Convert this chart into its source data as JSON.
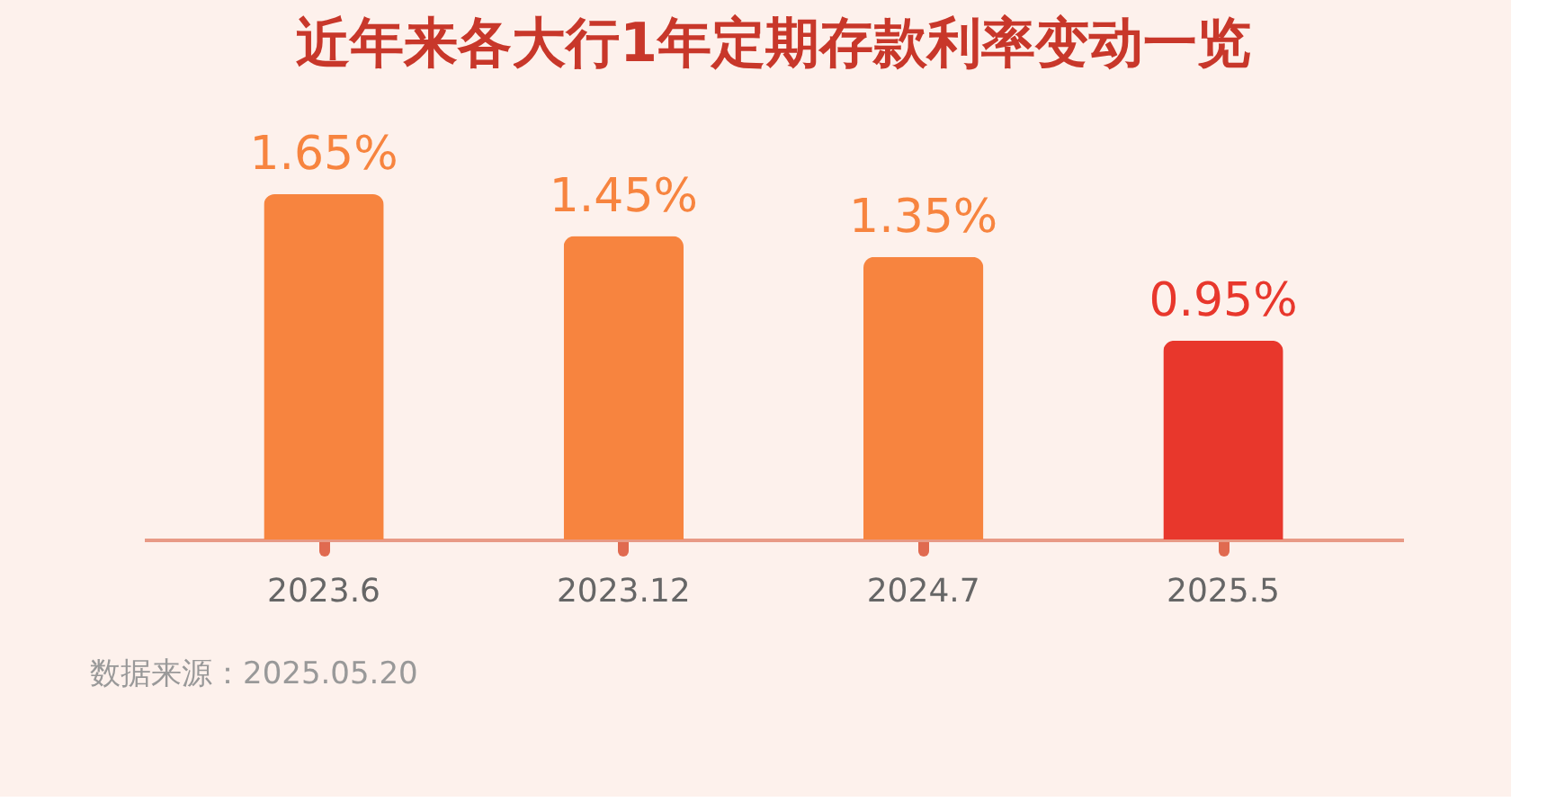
{
  "chart_data": {
    "type": "bar",
    "title": "近年来各大行1年定期存款利率变动一览",
    "categories": [
      "2023.6",
      "2023.12",
      "2024.7",
      "2025.5"
    ],
    "values": [
      1.65,
      1.45,
      1.35,
      0.95
    ],
    "colors": [
      "#f7843f",
      "#f7843f",
      "#f7843f",
      "#e8372c"
    ],
    "value_labels": [
      "1.65%",
      "1.45%",
      "1.35%",
      "0.95%"
    ],
    "tick_labels": "x",
    "grid": false,
    "annotations": [
      "数据来源：2025.05.20"
    ]
  }
}
